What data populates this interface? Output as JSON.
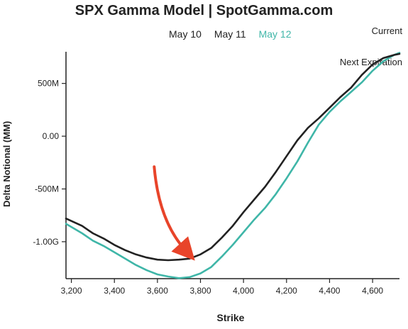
{
  "header": {
    "title": "SPX Gamma Model | SpotGamma.com",
    "dates": [
      "May 10",
      "May 11",
      "May 12"
    ],
    "active_date_index": 2
  },
  "chart_data": {
    "type": "line",
    "title": "SPX Gamma Model | SpotGamma.com",
    "xlabel": "Strike",
    "ylabel": "Delta Notional (MM)",
    "xlim": [
      3175,
      4725
    ],
    "ylim": [
      -1350,
      800
    ],
    "xticks": [
      3200,
      3400,
      3600,
      3800,
      4000,
      4200,
      4400,
      4600
    ],
    "xtick_labels": [
      "3,200",
      "3,400",
      "3,600",
      "3,800",
      "4,000",
      "4,200",
      "4,400",
      "4,600"
    ],
    "yticks": [
      500,
      0,
      -500,
      -1000
    ],
    "ytick_labels": [
      "500M",
      "0.00",
      "-500M",
      "-1.00G"
    ],
    "legend_position": "top-right",
    "series": [
      {
        "name": "Current",
        "color": "#3fb6a8",
        "x": [
          3175,
          3250,
          3300,
          3350,
          3400,
          3450,
          3500,
          3550,
          3600,
          3650,
          3700,
          3750,
          3800,
          3850,
          3900,
          3950,
          4000,
          4050,
          4100,
          4150,
          4200,
          4250,
          4300,
          4350,
          4400,
          4450,
          4500,
          4550,
          4600,
          4650,
          4700,
          4725
        ],
        "y": [
          -830,
          -920,
          -990,
          -1040,
          -1100,
          -1160,
          -1220,
          -1270,
          -1310,
          -1330,
          -1345,
          -1335,
          -1300,
          -1240,
          -1140,
          -1030,
          -910,
          -790,
          -680,
          -550,
          -400,
          -240,
          -60,
          110,
          230,
          330,
          420,
          510,
          620,
          710,
          770,
          790
        ]
      },
      {
        "name": "Next Expiration",
        "color": "#222222",
        "x": [
          3175,
          3250,
          3300,
          3350,
          3400,
          3450,
          3500,
          3550,
          3600,
          3650,
          3700,
          3750,
          3800,
          3850,
          3900,
          3950,
          4000,
          4050,
          4100,
          4150,
          4200,
          4250,
          4300,
          4350,
          4400,
          4450,
          4500,
          4550,
          4600,
          4650,
          4700,
          4725
        ],
        "y": [
          -780,
          -850,
          -920,
          -970,
          -1030,
          -1080,
          -1120,
          -1150,
          -1170,
          -1175,
          -1170,
          -1160,
          -1120,
          -1060,
          -960,
          -850,
          -720,
          -600,
          -480,
          -340,
          -190,
          -40,
          80,
          170,
          270,
          370,
          460,
          580,
          680,
          740,
          770,
          780
        ]
      }
    ],
    "annotations": [
      {
        "type": "arrow",
        "color": "#e8442a",
        "from": [
          3585,
          -290
        ],
        "to": [
          3730,
          -1080
        ]
      }
    ]
  }
}
